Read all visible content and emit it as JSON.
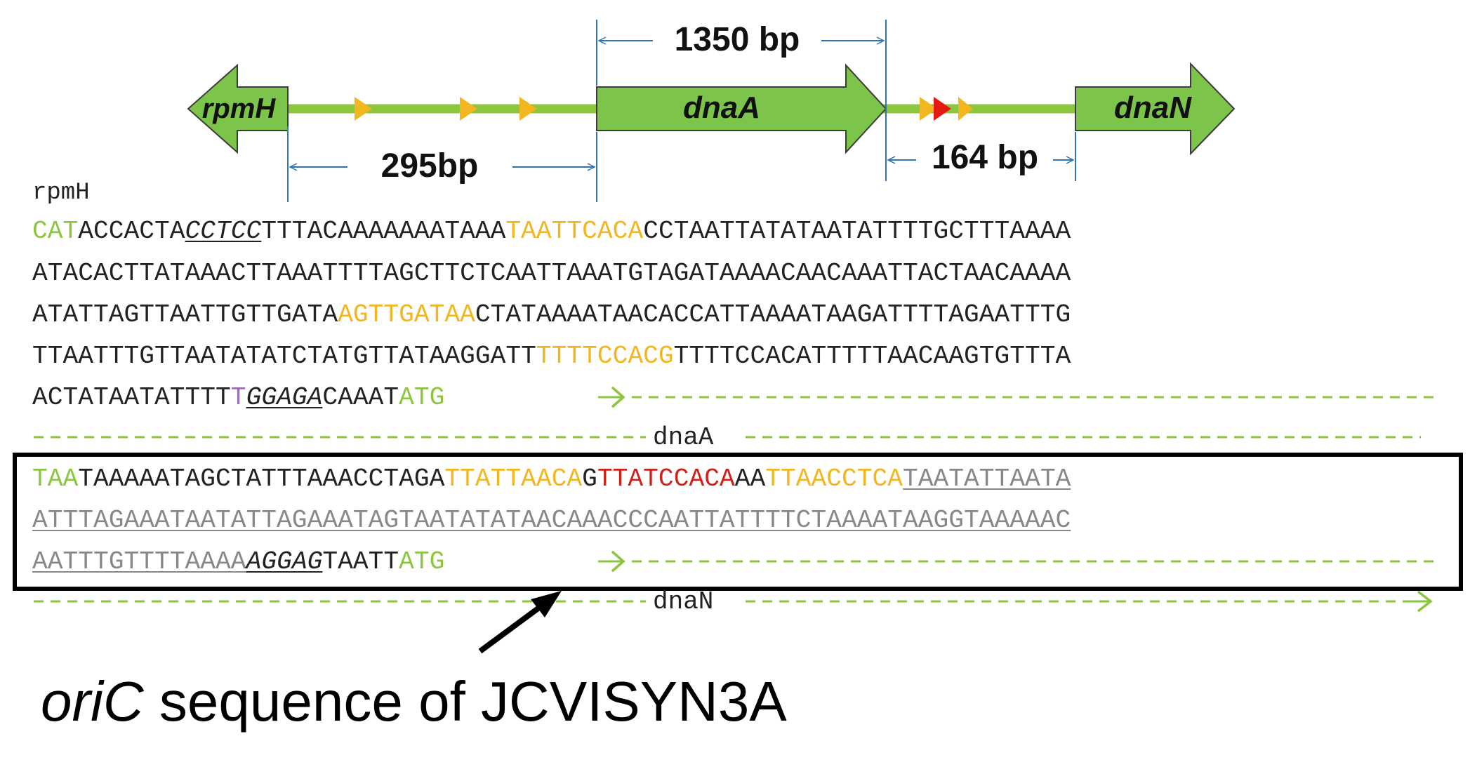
{
  "gene_map": {
    "genes": [
      {
        "name": "rpmH",
        "color": "#7dc44a",
        "direction": "left"
      },
      {
        "name": "dnaA",
        "color": "#7dc44a",
        "direction": "right"
      },
      {
        "name": "dnaN",
        "color": "#7dc44a",
        "direction": "right"
      }
    ],
    "dnaa_box_markers": {
      "colors": {
        "consensus": "#f2b620",
        "perfect": "#e41b13"
      }
    },
    "dimensions": {
      "rpmh_dnaa_gap": "295bp",
      "dnaa_length": "1350 bp",
      "dnaa_dnan_gap": "164 bp"
    }
  },
  "sequence": {
    "start_label": "rpmH",
    "lines": [
      {
        "segments": [
          {
            "text": "CAT",
            "color": "green"
          },
          {
            "text": "ACCACTA",
            "color": "black"
          },
          {
            "text": "CCTCC",
            "color": "black",
            "underline": true,
            "italic": true
          },
          {
            "text": "TTTACAAAAAAATAAA",
            "color": "black"
          },
          {
            "text": "TAATTCACA",
            "color": "orange"
          },
          {
            "text": "CCTAATTATATAATATTTTGCTTTAAAA",
            "color": "black"
          }
        ]
      },
      {
        "segments": [
          {
            "text": "ATACACTTATAAACTTAAATTTTAGCTTCTCAATTAAATGTAGATAAAACAACAAATTACTAACAAAA",
            "color": "black"
          }
        ]
      },
      {
        "segments": [
          {
            "text": "ATATTAGTTAATTGTTGATA",
            "color": "black"
          },
          {
            "text": "AGTTGATAA",
            "color": "orange"
          },
          {
            "text": "CTATAAAATAACACCATTAAAATAAGATTTTAGAATTTG",
            "color": "black"
          }
        ]
      },
      {
        "segments": [
          {
            "text": "TTAATTTGTTAATATATCTATGTTATAAGGATT",
            "color": "black"
          },
          {
            "text": "TTTTCCACG",
            "color": "orange"
          },
          {
            "text": "TTTTCCACATTTTTAACAAGTGTTTA",
            "color": "black"
          }
        ]
      },
      {
        "segments": [
          {
            "text": "ACTATAATATTTT",
            "color": "black"
          },
          {
            "text": "T",
            "color": "purple"
          },
          {
            "text": "GGAGA",
            "color": "black",
            "underline": true,
            "italic": true
          },
          {
            "text": "CAAAT",
            "color": "black"
          },
          {
            "text": "ATG",
            "color": "green"
          }
        ]
      },
      {
        "segments": [
          {
            "text": "TAA",
            "color": "green"
          },
          {
            "text": "TAAAAATAGCTATTTAAACCTAGA",
            "color": "black"
          },
          {
            "text": "TTATTAACA",
            "color": "orange"
          },
          {
            "text": "G",
            "color": "black"
          },
          {
            "text": "TTATCCACA",
            "color": "red"
          },
          {
            "text": "AA",
            "color": "black"
          },
          {
            "text": "TTAACCTCA",
            "color": "orange"
          },
          {
            "text": "TAATATTAATA",
            "color": "gray",
            "underline": true
          }
        ]
      },
      {
        "segments": [
          {
            "text": "ATTTAGAAATAATATTAGAAATAGTAATATATAACAAACCCAATTATTTTCTAAAATAAGGTAAAAAC",
            "color": "gray",
            "underline": true
          }
        ]
      },
      {
        "segments": [
          {
            "text": "AATTTGTTTTAAAA",
            "color": "gray",
            "underline": true
          },
          {
            "text": "AGGAG",
            "color": "black",
            "underline": true,
            "italic": true
          },
          {
            "text": "TAATT",
            "color": "black"
          },
          {
            "text": "ATG",
            "color": "green"
          }
        ]
      }
    ],
    "gene_labels": {
      "dnaA": "dnaA",
      "dnaN": "dnaN"
    },
    "colors": {
      "green": "#8cc63f",
      "orange": "#f2b620",
      "red": "#d0201a",
      "purple": "#9b6fb8",
      "black": "#222222",
      "gray": "#888888"
    }
  },
  "caption": {
    "italic_part": "oriC",
    "rest": " sequence of JCVISYN3A"
  }
}
